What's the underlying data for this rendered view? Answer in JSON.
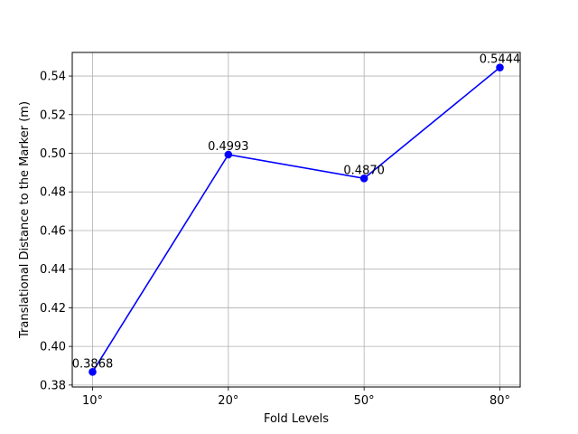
{
  "chart_data": {
    "type": "line",
    "title": "",
    "xlabel": "Fold Levels",
    "ylabel": "Translational Distance to the Marker (m)",
    "categories": [
      "10°",
      "20°",
      "50°",
      "80°"
    ],
    "series": [
      {
        "values": [
          0.3868,
          0.4993,
          0.487,
          0.5444
        ],
        "data_labels": [
          "0.3868",
          "0.4993",
          "0.4870",
          "0.5444"
        ],
        "color": "#0000ff",
        "marker": "circle"
      }
    ],
    "ylim": [
      0.379,
      0.5522
    ],
    "yticks": [
      0.38,
      0.4,
      0.42,
      0.44,
      0.46,
      0.48,
      0.5,
      0.52,
      0.54
    ],
    "ytick_labels": [
      "0.38",
      "0.40",
      "0.42",
      "0.44",
      "0.46",
      "0.48",
      "0.50",
      "0.52",
      "0.54"
    ],
    "grid": true,
    "legend": "none"
  }
}
